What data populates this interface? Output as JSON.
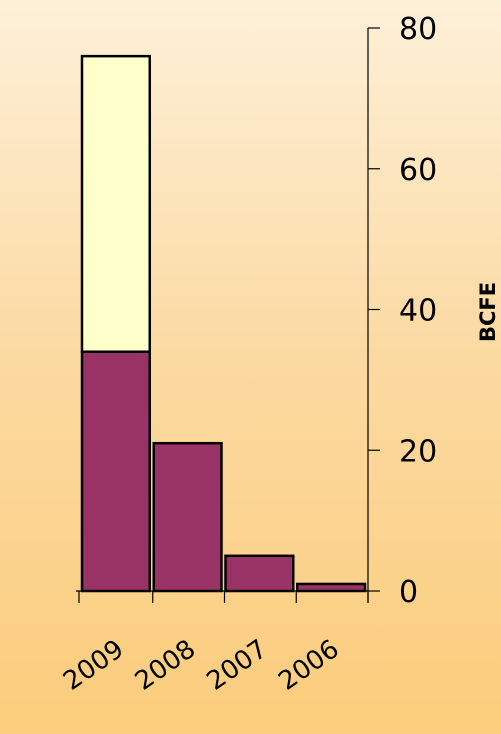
{
  "chart_data": {
    "type": "bar",
    "stacked": true,
    "categories": [
      "2009",
      "2008",
      "2007",
      "2006"
    ],
    "series": [
      {
        "values": [
          34,
          21,
          5,
          1
        ],
        "color": "#993366"
      },
      {
        "values": [
          42,
          0,
          0,
          0
        ],
        "color": "#ffffcc"
      }
    ],
    "ylabel": "BCFE",
    "xlabel": "",
    "ylim": [
      0,
      80
    ],
    "yticks": [
      "0",
      "20",
      "40",
      "60",
      "80"
    ],
    "y_axis_side": "right",
    "grid": false,
    "legend": "none"
  }
}
